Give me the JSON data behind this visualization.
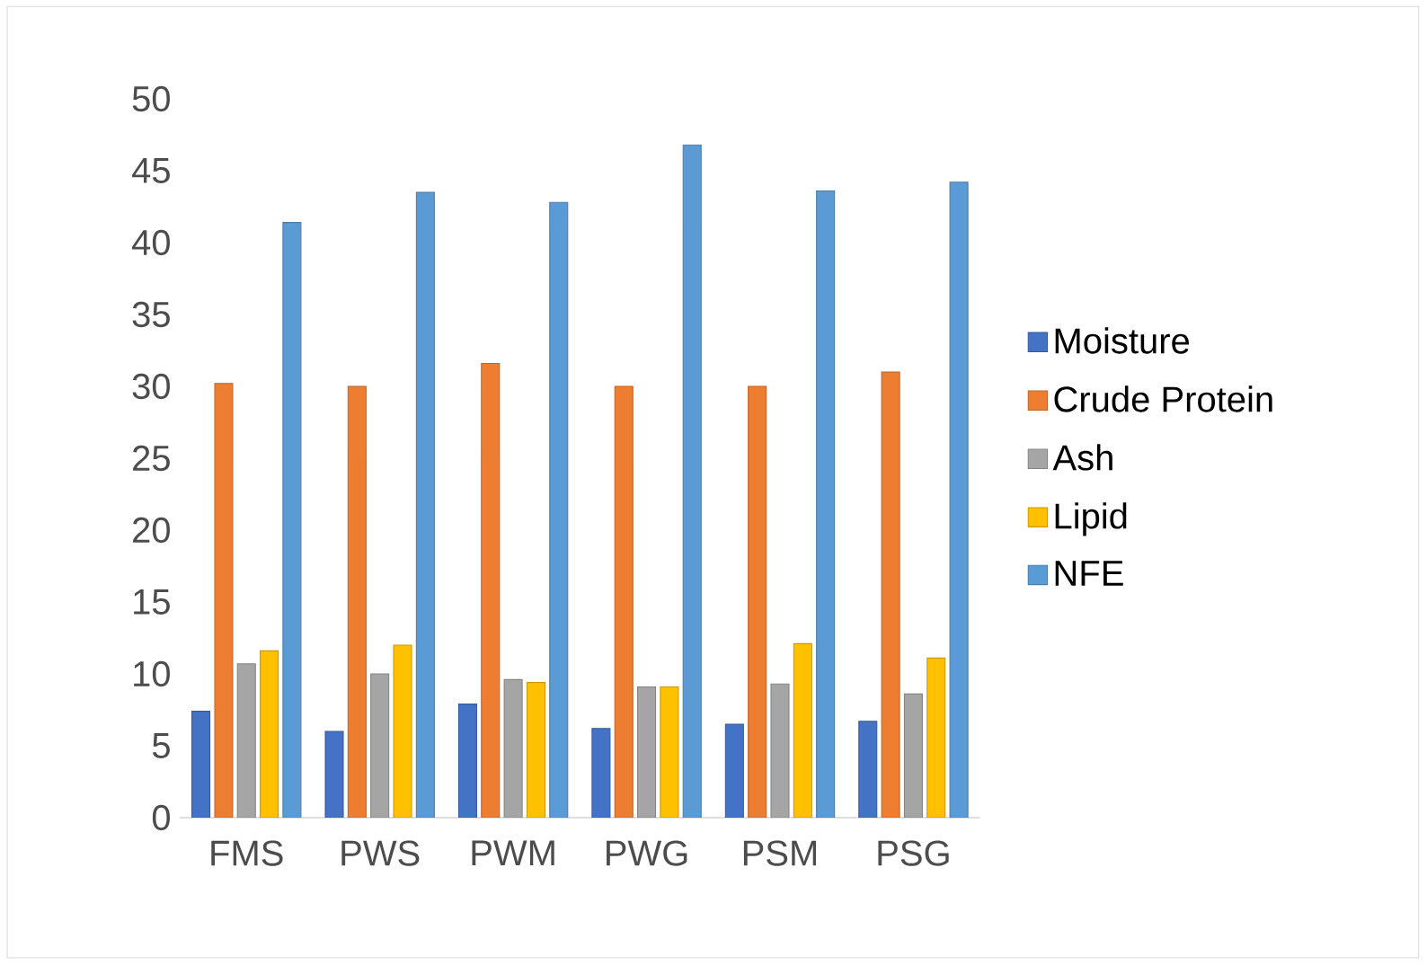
{
  "chart_data": {
    "type": "bar",
    "categories": [
      "FMS",
      "PWS",
      "PWM",
      "PWG",
      "PSM",
      "PSG"
    ],
    "series": [
      {
        "name": "Moisture",
        "color": "#4472c4",
        "values": [
          7.4,
          6.0,
          7.9,
          6.2,
          6.5,
          6.7
        ]
      },
      {
        "name": "Crude Protein",
        "color": "#ed7d31",
        "values": [
          30.2,
          30.0,
          31.6,
          30.0,
          30.0,
          31.0
        ]
      },
      {
        "name": "Ash",
        "color": "#a5a5a5",
        "values": [
          10.7,
          10.0,
          9.6,
          9.1,
          9.3,
          8.6
        ]
      },
      {
        "name": "Lipid",
        "color": "#ffc000",
        "values": [
          11.6,
          12.0,
          9.4,
          9.1,
          12.1,
          11.1
        ]
      },
      {
        "name": "NFE",
        "color": "#5b9bd5",
        "values": [
          41.4,
          43.5,
          42.8,
          46.8,
          43.6,
          44.2
        ]
      }
    ],
    "ylim": [
      0,
      50
    ],
    "yticks": [
      0,
      5,
      10,
      15,
      20,
      25,
      30,
      35,
      40,
      45,
      50
    ],
    "grid": false,
    "legend": "right"
  }
}
